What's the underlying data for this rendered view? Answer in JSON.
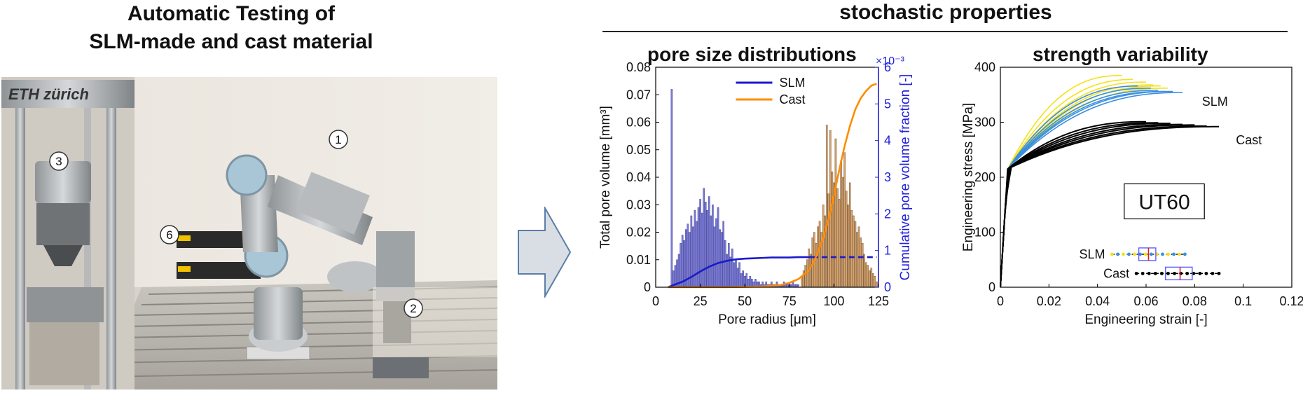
{
  "left": {
    "title_line1": "Automatic Testing of",
    "title_line2": "SLM-made and cast material",
    "photo": {
      "logo": "ETH zürich",
      "callouts": [
        "1",
        "2",
        "3",
        "6"
      ]
    }
  },
  "right": {
    "title": "stochastic properties"
  },
  "chart_data": [
    {
      "type": "bar",
      "title": "pore size distributions",
      "xlabel": "Pore radius [μm]",
      "ylabel": "Total pore volume [mm³]",
      "y2label": "Cumulative pore volume fraction [-]",
      "y2_multiplier": "×10⁻³",
      "xlim": [
        0,
        125
      ],
      "ylim": [
        0,
        0.08
      ],
      "y2lim": [
        0,
        6
      ],
      "xticks": [
        0,
        25,
        50,
        75,
        100,
        125
      ],
      "yticks": [
        0,
        0.01,
        0.02,
        0.03,
        0.04,
        0.05,
        0.06,
        0.07,
        0.08
      ],
      "ytick_labels": [
        "0",
        "0.01",
        "0.02",
        "0.03",
        "0.04",
        "0.05",
        "0.06",
        "0.07",
        "0.08"
      ],
      "y2ticks": [
        0,
        1,
        2,
        3,
        4,
        5,
        6
      ],
      "legend": [
        "SLM",
        "Cast"
      ],
      "legend_position": "top-center",
      "colors": {
        "SLM": "#1a1acc",
        "Cast": "#ff8c00",
        "SLM_bar": "#7b7bd6",
        "Cast_bar": "#d9a36a",
        "axis2": "#2222dd"
      },
      "series": [
        {
          "name": "SLM",
          "kind": "histogram",
          "x": [
            9,
            10,
            11,
            12,
            13,
            14,
            15,
            16,
            17,
            18,
            19,
            20,
            21,
            22,
            23,
            24,
            25,
            26,
            27,
            28,
            29,
            30,
            31,
            32,
            33,
            34,
            35,
            36,
            37,
            38,
            39,
            40,
            41,
            42,
            43,
            44,
            45,
            46,
            47,
            48,
            49,
            50,
            51,
            52,
            53,
            54,
            55,
            56,
            57,
            58,
            59,
            60,
            61,
            62,
            63,
            64,
            65,
            66,
            67,
            68,
            69,
            70,
            71,
            72,
            73,
            74,
            75,
            76,
            77,
            78,
            79,
            80
          ],
          "values": [
            0.072,
            0.006,
            0.008,
            0.01,
            0.012,
            0.016,
            0.019,
            0.017,
            0.021,
            0.023,
            0.02,
            0.026,
            0.022,
            0.028,
            0.024,
            0.029,
            0.032,
            0.027,
            0.036,
            0.031,
            0.028,
            0.033,
            0.026,
            0.03,
            0.022,
            0.025,
            0.029,
            0.021,
            0.02,
            0.024,
            0.017,
            0.012,
            0.016,
            0.011,
            0.014,
            0.009,
            0.01,
            0.007,
            0.009,
            0.005,
            0.006,
            0.004,
            0.005,
            0.003,
            0.004,
            0.003,
            0.002,
            0.003,
            0.002,
            0.002,
            0.001,
            0.002,
            0.001,
            0.002,
            0.001,
            0.001,
            0.002,
            0.001,
            0.001,
            0.002,
            0.001,
            0.001,
            0.001,
            0.002,
            0.001,
            0.001,
            0.001,
            0.001,
            0.002,
            0.001,
            0.001,
            0.001
          ]
        },
        {
          "name": "Cast",
          "kind": "histogram",
          "x": [
            82,
            83,
            84,
            85,
            86,
            87,
            88,
            89,
            90,
            91,
            92,
            93,
            94,
            95,
            96,
            97,
            98,
            99,
            100,
            101,
            102,
            103,
            104,
            105,
            106,
            107,
            108,
            109,
            110,
            111,
            112,
            113,
            114,
            115,
            116,
            117,
            118,
            119,
            120,
            121,
            122,
            123,
            124
          ],
          "values": [
            0.004,
            0.006,
            0.008,
            0.01,
            0.014,
            0.012,
            0.018,
            0.02,
            0.016,
            0.022,
            0.024,
            0.02,
            0.03,
            0.026,
            0.059,
            0.034,
            0.057,
            0.042,
            0.038,
            0.054,
            0.036,
            0.032,
            0.046,
            0.04,
            0.049,
            0.035,
            0.03,
            0.038,
            0.028,
            0.026,
            0.024,
            0.02,
            0.022,
            0.018,
            0.016,
            0.012,
            0.009,
            0.008,
            0.006,
            0.007,
            0.005,
            0.004,
            0.002
          ]
        },
        {
          "name": "SLM",
          "kind": "cumulative",
          "axis": "y2",
          "x": [
            7,
            10,
            15,
            20,
            25,
            30,
            35,
            40,
            45,
            50,
            55,
            60,
            65,
            70,
            75,
            80,
            85,
            88
          ],
          "values": [
            0,
            0.06,
            0.15,
            0.28,
            0.43,
            0.56,
            0.66,
            0.72,
            0.76,
            0.78,
            0.79,
            0.8,
            0.81,
            0.81,
            0.81,
            0.82,
            0.82,
            0.82
          ],
          "dashed_to": 124
        },
        {
          "name": "Cast",
          "kind": "cumulative",
          "axis": "y2",
          "x": [
            7,
            20,
            40,
            60,
            70,
            75,
            80,
            85,
            88,
            91,
            94,
            97,
            100,
            103,
            106,
            109,
            112,
            115,
            118,
            121,
            124
          ],
          "values": [
            0,
            0,
            0,
            0.02,
            0.06,
            0.12,
            0.22,
            0.42,
            0.62,
            0.95,
            1.35,
            1.85,
            2.5,
            3.2,
            3.85,
            4.4,
            4.85,
            5.15,
            5.35,
            5.5,
            5.55
          ]
        }
      ]
    },
    {
      "type": "line",
      "title": "strength variability",
      "xlabel": "Engineering strain [-]",
      "ylabel": "Engineering stress [MPa]",
      "xlim": [
        0,
        0.12
      ],
      "ylim": [
        0,
        400
      ],
      "xticks": [
        0,
        0.02,
        0.04,
        0.06,
        0.08,
        0.1,
        0.12
      ],
      "xtick_labels": [
        "0",
        "0.02",
        "0.04",
        "0.06",
        "0.08",
        "0.1",
        "0.12"
      ],
      "yticks": [
        0,
        100,
        200,
        300,
        400
      ],
      "annotations": {
        "slm": "SLM",
        "cast": "Cast",
        "box": "UT60"
      },
      "boxplot_labels": [
        "SLM",
        "Cast"
      ],
      "colors": {
        "SLM_yellow": "#f5e11a",
        "SLM_blue": "#3a8fe0",
        "Cast": "#000000",
        "box_outline": "#6060ff",
        "median": "#e02020"
      },
      "series": [
        {
          "name": "SLM",
          "curves": [
            {
              "end_strain": 0.05,
              "end_stress": 385,
              "color": "yellow"
            },
            {
              "end_strain": 0.056,
              "end_stress": 378,
              "color": "yellow"
            },
            {
              "end_strain": 0.06,
              "end_stress": 373,
              "color": "yellow"
            },
            {
              "end_strain": 0.063,
              "end_stress": 368,
              "color": "yellow"
            },
            {
              "end_strain": 0.066,
              "end_stress": 366,
              "color": "yellow"
            },
            {
              "end_strain": 0.069,
              "end_stress": 362,
              "color": "yellow"
            },
            {
              "end_strain": 0.058,
              "end_stress": 366,
              "color": "blue"
            },
            {
              "end_strain": 0.062,
              "end_stress": 362,
              "color": "blue"
            },
            {
              "end_strain": 0.065,
              "end_stress": 358,
              "color": "blue"
            },
            {
              "end_strain": 0.068,
              "end_stress": 356,
              "color": "blue"
            },
            {
              "end_strain": 0.071,
              "end_stress": 356,
              "color": "blue"
            },
            {
              "end_strain": 0.075,
              "end_stress": 354,
              "color": "blue"
            }
          ]
        },
        {
          "name": "Cast",
          "curves": [
            {
              "end_strain": 0.06,
              "end_stress": 301,
              "color": "black"
            },
            {
              "end_strain": 0.065,
              "end_stress": 299,
              "color": "black"
            },
            {
              "end_strain": 0.07,
              "end_stress": 298,
              "color": "black"
            },
            {
              "end_strain": 0.075,
              "end_stress": 296,
              "color": "black"
            },
            {
              "end_strain": 0.08,
              "end_stress": 295,
              "color": "black"
            },
            {
              "end_strain": 0.085,
              "end_stress": 293,
              "color": "black"
            },
            {
              "end_strain": 0.09,
              "end_stress": 292,
              "color": "black"
            }
          ]
        }
      ],
      "boxplots": [
        {
          "name": "SLM",
          "y": 60,
          "min": 0.046,
          "q1": 0.057,
          "median": 0.061,
          "q3": 0.064,
          "max": 0.076
        },
        {
          "name": "Cast",
          "y": 25,
          "min": 0.056,
          "q1": 0.068,
          "median": 0.074,
          "q3": 0.079,
          "max": 0.09
        }
      ]
    }
  ]
}
